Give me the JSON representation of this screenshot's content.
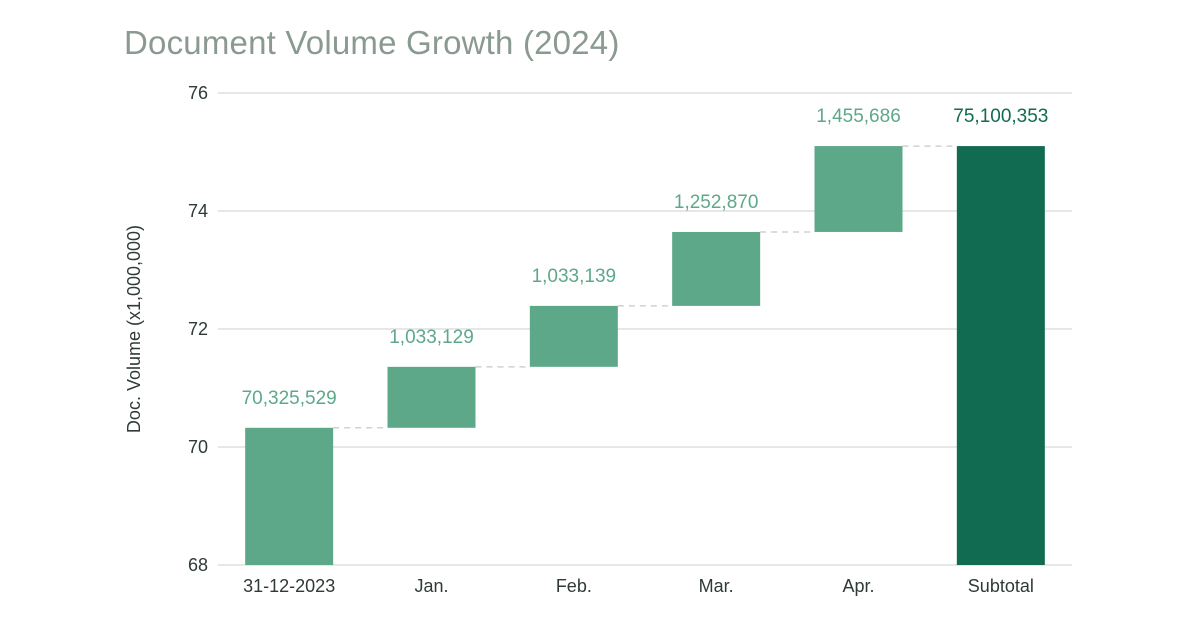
{
  "chart_data": {
    "type": "waterfall",
    "title": "Document Volume Growth (2024)",
    "ylabel": "Doc. Volume (x1,000,000)",
    "xlabel": "",
    "ylim": [
      68,
      76
    ],
    "yticks": [
      68,
      70,
      72,
      74,
      76
    ],
    "categories": [
      "31-12-2023",
      "Jan.",
      "Feb.",
      "Mar.",
      "Apr.",
      "Subtotal"
    ],
    "values": [
      70325529,
      1033129,
      1033139,
      1252870,
      1455686,
      75100353
    ],
    "bar_kinds": [
      "total",
      "increase",
      "increase",
      "increase",
      "increase",
      "total"
    ],
    "data_labels": [
      "70,325,529",
      "1,033,129",
      "1,033,139",
      "1,252,870",
      "1,455,686",
      "75,100,353"
    ],
    "value_unit_divisor": 1000000,
    "grid": true,
    "connector_lines": true,
    "colors": {
      "bar": "#5ea88a",
      "subtotal_bar": "#116b51",
      "label": "#5ea88a",
      "subtotal_label": "#116b51",
      "grid": "#cfcfcf",
      "connector": "#d0d0d0"
    }
  }
}
